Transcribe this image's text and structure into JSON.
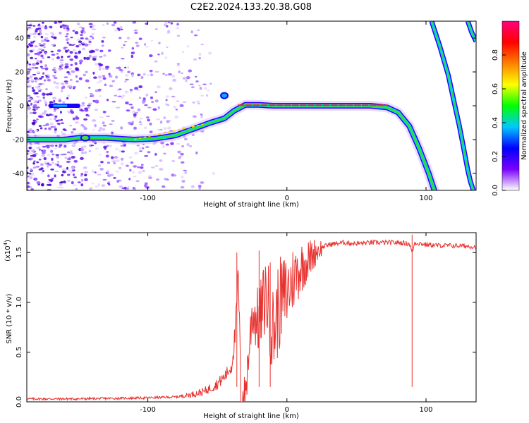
{
  "title": "C2E2.2024.133.20.38.G08",
  "chart_data": [
    {
      "type": "heatmap",
      "xlabel": "Height of straight line (km)",
      "ylabel": "Frequency (Hz)",
      "xlim": [
        -187,
        136
      ],
      "ylim": [
        -50,
        50
      ],
      "x_ticks": [
        -100,
        0,
        100
      ],
      "y_ticks": [
        -40,
        -20,
        0,
        20,
        40
      ],
      "x_tick_labels": [
        "-100",
        "0",
        "100"
      ],
      "y_tick_labels": [
        "-40",
        "-20",
        "0",
        "20",
        "40"
      ],
      "colorbar": {
        "label": "Normalized spectral amplitude",
        "range": [
          0,
          1
        ],
        "ticks": [
          0.0,
          0.2,
          0.4,
          0.6,
          0.8
        ],
        "tick_labels": [
          "0.0",
          "0.2",
          "0.4",
          "0.6",
          "0.8"
        ],
        "colors": [
          "#ffffff",
          "#7a00ff",
          "#0000ff",
          "#00c8ff",
          "#00ff00",
          "#ffff00",
          "#ff8000",
          "#ff0000",
          "#ff0080"
        ]
      },
      "ridge": {
        "x": [
          -187,
          -160,
          -150,
          -130,
          -110,
          -95,
          -80,
          -65,
          -55,
          -45,
          -38,
          -30,
          -20,
          -10,
          0,
          20,
          40,
          60,
          72,
          80,
          88,
          95,
          102,
          106
        ],
        "y": [
          -20,
          -20,
          -19,
          -19,
          -20,
          -19.5,
          -17.5,
          -13,
          -10,
          -7.5,
          -3,
          0.5,
          0.5,
          0,
          0,
          0,
          0,
          0,
          -1,
          -4,
          -12,
          -25,
          -40,
          -50
        ]
      },
      "secondary_streaks": [
        {
          "x": [
            104,
            110,
            116,
            120,
            124,
            127,
            130,
            132,
            134
          ],
          "y": [
            50,
            35,
            18,
            3,
            -12,
            -25,
            -38,
            -45,
            -50
          ]
        },
        {
          "x": [
            130,
            133,
            136
          ],
          "y": [
            50,
            43,
            38
          ]
        }
      ],
      "dc_blob": {
        "x": [
          -170,
          -150
        ],
        "y": [
          0,
          0
        ]
      }
    },
    {
      "type": "line",
      "xlabel": "Height of straight line (km)",
      "ylabel": "SNR (10 * v/v)",
      "scale_label": "(x10",
      "scale_exponent": "4",
      "xlim": [
        -187,
        136
      ],
      "ylim": [
        0,
        17000
      ],
      "x_ticks": [
        -100,
        0,
        100
      ],
      "y_ticks": [
        0,
        5000,
        10000,
        15000
      ],
      "x_tick_labels": [
        "-100",
        "0",
        "100"
      ],
      "y_tick_labels": [
        "0.0",
        "0.5",
        "1.0",
        "1.5"
      ],
      "color": "#e8322f",
      "x": [
        -187,
        -150,
        -100,
        -80,
        -70,
        -60,
        -50,
        -45,
        -40,
        -37,
        -35,
        -33,
        -30,
        -25,
        -20,
        -15,
        -10,
        -5,
        0,
        5,
        10,
        15,
        20,
        25,
        30,
        40,
        50,
        60,
        70,
        80,
        88,
        90,
        92,
        100,
        110,
        120,
        136
      ],
      "y": [
        300,
        300,
        400,
        500,
        700,
        1000,
        1800,
        2500,
        3500,
        7000,
        13000,
        500,
        600,
        9000,
        8000,
        11000,
        7000,
        10000,
        11000,
        12500,
        13500,
        14200,
        15000,
        15500,
        15800,
        16000,
        15900,
        16000,
        16000,
        16000,
        15900,
        15000,
        16000,
        15800,
        15700,
        15700,
        15600
      ]
    }
  ]
}
